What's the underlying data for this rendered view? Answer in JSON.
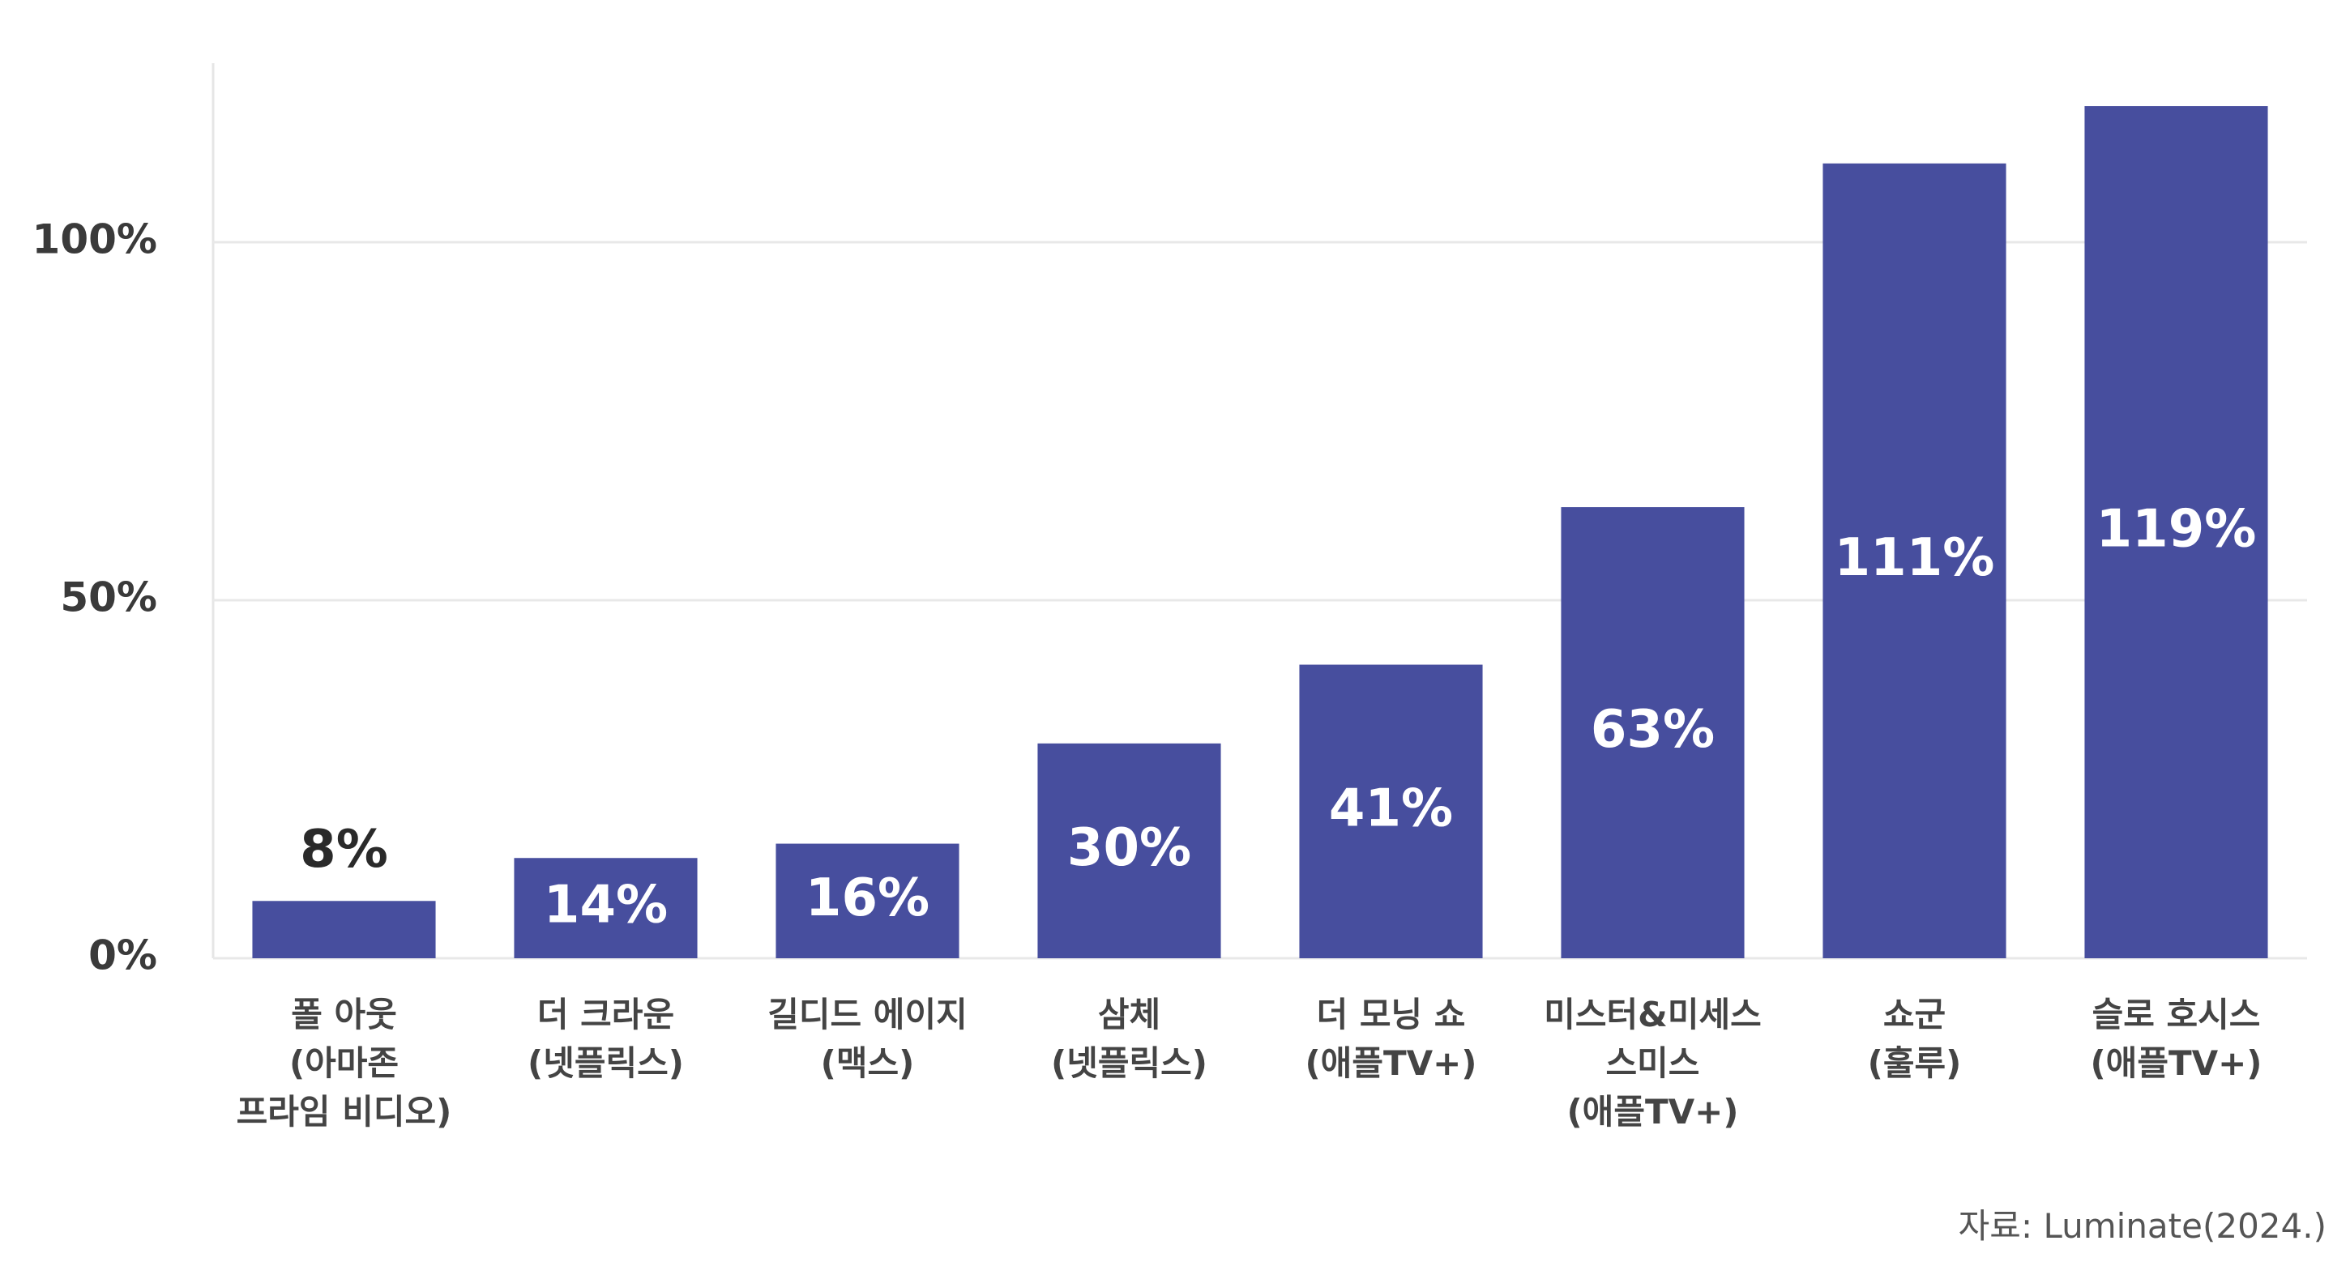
{
  "chart_data": {
    "type": "bar",
    "categories": [
      "폴 아웃\n(아마존\n프라임 비디오)",
      "더 크라운\n(넷플릭스)",
      "길디드 에이지\n(맥스)",
      "삼체\n(넷플릭스)",
      "더 모닝 쇼\n(애플TV+)",
      "미스터&미세스\n스미스\n(애플TV+)",
      "쇼군\n(훌루)",
      "슬로 호시스\n(애플TV+)"
    ],
    "values": [
      8,
      14,
      16,
      30,
      41,
      63,
      111,
      119
    ],
    "value_labels": [
      "8%",
      "14%",
      "16%",
      "30%",
      "41%",
      "63%",
      "111%",
      "119%"
    ],
    "color": "#474e9e",
    "ylim": [
      0,
      125
    ],
    "yticks": [
      {
        "value": 0,
        "label": "0%"
      },
      {
        "value": 50,
        "label": "50%"
      },
      {
        "value": 100,
        "label": "100%"
      }
    ],
    "grid": true,
    "source": "자료: Luminate(2024.)"
  }
}
